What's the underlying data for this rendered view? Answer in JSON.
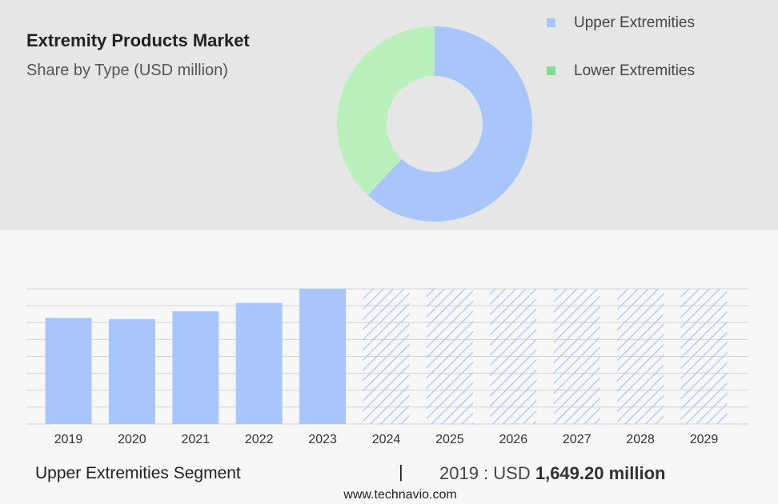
{
  "header": {
    "title": "Extremity Products Market",
    "subtitle": "Share by Type (USD million)"
  },
  "legend": [
    {
      "label": "Upper Extremities",
      "color": "#a9c6fb"
    },
    {
      "label": "Lower Extremities",
      "color": "#7ee08c"
    }
  ],
  "footer": {
    "segment": "Upper Extremities Segment",
    "separator": "|",
    "year_prefix": "2019 : USD ",
    "value_bold": "1,649.20 million"
  },
  "source": "www.technavio.com",
  "chart_data": [
    {
      "type": "pie",
      "donut": true,
      "title": "Share by Type (USD million)",
      "labels": [
        "Upper Extremities",
        "Lower Extremities"
      ],
      "values": [
        62,
        38
      ],
      "colors": [
        "#a9c6fb",
        "#b9f0bc"
      ]
    },
    {
      "type": "bar",
      "categories": [
        "2019",
        "2020",
        "2021",
        "2022",
        "2023",
        "2024",
        "2025",
        "2026",
        "2027",
        "2028",
        "2029"
      ],
      "values": [
        1649.2,
        1630,
        1750,
        1880,
        2100,
        2100,
        2100,
        2100,
        2100,
        2100,
        2100
      ],
      "forecast_from": "2024",
      "ylim": [
        0,
        2100
      ],
      "grid": true,
      "color": "#a9c6fb"
    }
  ]
}
